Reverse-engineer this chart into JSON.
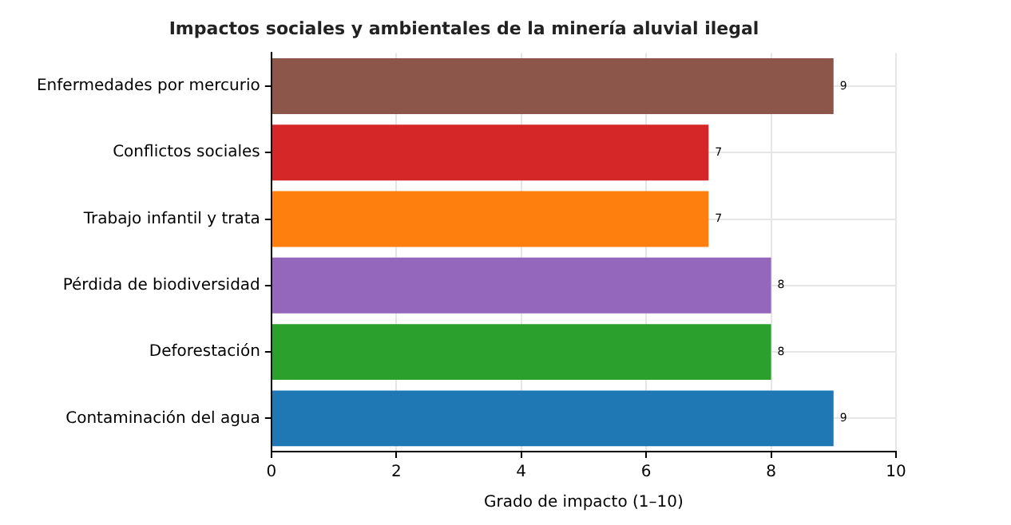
{
  "chart_data": {
    "type": "bar",
    "orientation": "horizontal",
    "title": "Impactos sociales y ambientales de la minería aluvial ilegal",
    "xlabel": "Grado de impacto (1–10)",
    "categories": [
      "Enfermedades por mercurio",
      "Conflictos sociales",
      "Trabajo infantil y trata",
      "Pérdida de biodiversidad",
      "Deforestación",
      "Contaminación del agua"
    ],
    "values": [
      9,
      7,
      7,
      8,
      8,
      9
    ],
    "colors": [
      "#8c564b",
      "#d62728",
      "#ff7f0e",
      "#9467bd",
      "#2ca02c",
      "#1f77b4"
    ],
    "xlim": [
      0,
      10
    ],
    "xticks": [
      0,
      2,
      4,
      6,
      8,
      10
    ],
    "grid": true,
    "data_labels": true,
    "legend": false
  }
}
